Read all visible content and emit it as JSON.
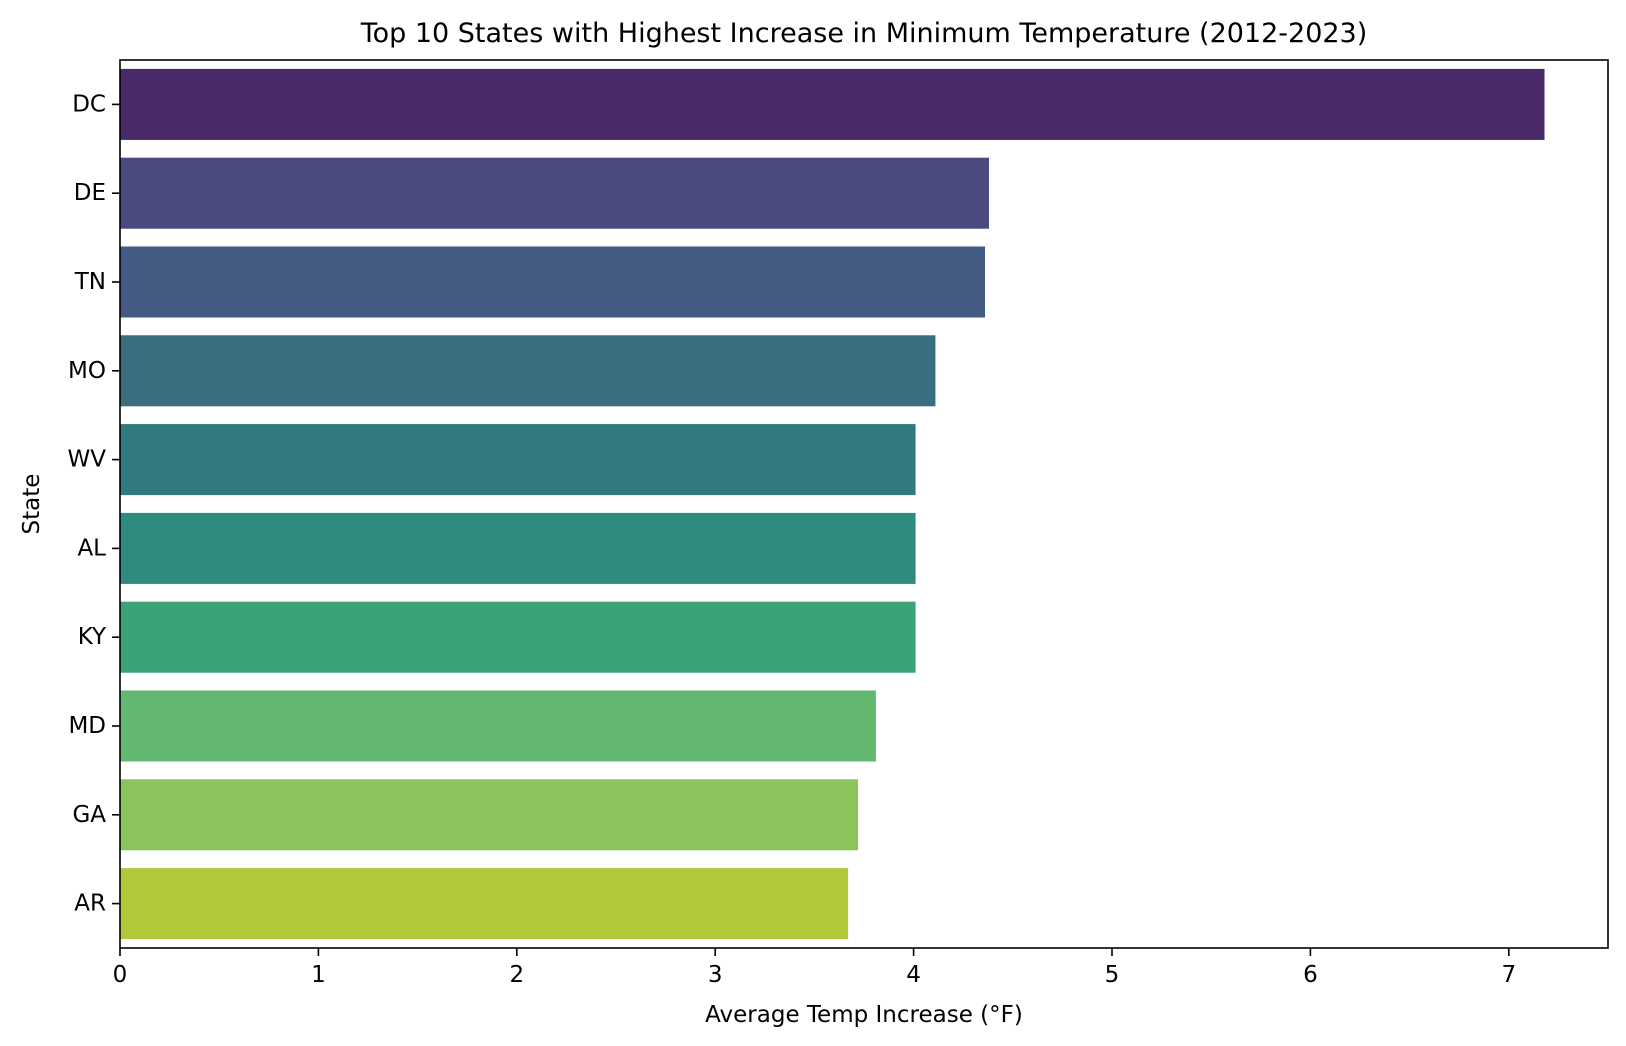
{
  "chart_data": {
    "type": "bar",
    "orientation": "horizontal",
    "title": "Top 10 States with Highest Increase in Minimum Temperature (2012-2023)",
    "xlabel": "Average Temp Increase (°F)",
    "ylabel": "State",
    "categories": [
      "DC",
      "DE",
      "TN",
      "MO",
      "WV",
      "AL",
      "KY",
      "MD",
      "GA",
      "AR"
    ],
    "values": [
      7.18,
      4.38,
      4.36,
      4.11,
      4.01,
      4.01,
      4.01,
      3.81,
      3.72,
      3.67
    ],
    "colors": [
      "#482b68",
      "#4a4a7e",
      "#445c84",
      "#396d80",
      "#317a80",
      "#2e8b7e",
      "#3ca378",
      "#63b86f",
      "#8ac45b",
      "#b1c83a"
    ],
    "xlim": [
      0,
      7.5
    ],
    "xticks": [
      0,
      1,
      2,
      3,
      4,
      5,
      6,
      7
    ],
    "grid": false,
    "legend": "none"
  }
}
